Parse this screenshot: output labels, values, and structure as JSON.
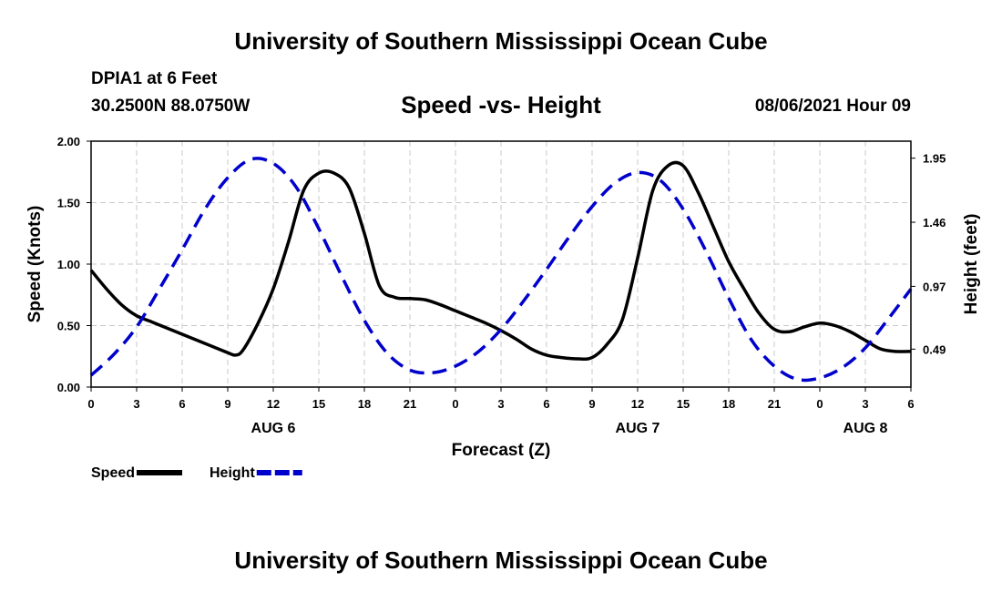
{
  "header": {
    "top_title": "University of Southern Mississippi Ocean Cube",
    "station": "DPIA1 at 6 Feet",
    "coordinates": "30.2500N  88.0750W",
    "subtitle": "Speed -vs- Height",
    "datetime": "08/06/2021 Hour 09",
    "bottom_title": "University of Southern Mississippi Ocean Cube"
  },
  "chart_data": {
    "type": "line",
    "title": "Speed -vs- Height",
    "xlabel": "Forecast (Z)",
    "ylabel": "Speed (Knots)",
    "y2label": "Height (feet)",
    "xlim": [
      0,
      54
    ],
    "ylim": [
      0,
      2.0
    ],
    "y2lim": [
      0.2,
      2.08
    ],
    "grid": true,
    "x_ticks": [
      0,
      3,
      6,
      9,
      12,
      15,
      18,
      21,
      24,
      27,
      30,
      33,
      36,
      39,
      42,
      45,
      48,
      51,
      54
    ],
    "x_tick_labels": [
      "0",
      "3",
      "6",
      "9",
      "12",
      "15",
      "18",
      "21",
      "0",
      "3",
      "6",
      "9",
      "12",
      "15",
      "18",
      "21",
      "0",
      "3",
      "6"
    ],
    "day_labels": [
      {
        "x": 12,
        "label": "AUG 6"
      },
      {
        "x": 36,
        "label": "AUG 7"
      },
      {
        "x": 51,
        "label": "AUG 8"
      }
    ],
    "y_ticks": [
      0.0,
      0.5,
      1.0,
      1.5,
      2.0
    ],
    "y_tick_labels": [
      "0.00",
      "0.50",
      "1.00",
      "1.50",
      "2.00"
    ],
    "y2_ticks": [
      0.49,
      0.97,
      1.46,
      1.95
    ],
    "y2_tick_labels": [
      "0.49",
      "0.97",
      "1.46",
      "1.95"
    ],
    "series": [
      {
        "name": "Speed",
        "axis": "left",
        "color": "#000000",
        "style": "solid",
        "x": [
          0,
          1,
          2,
          3,
          4,
          5,
          6,
          7,
          8,
          9,
          9.5,
          10,
          11,
          12,
          13,
          14,
          15,
          16,
          17,
          18,
          19,
          20,
          21,
          22,
          23,
          24,
          25,
          26,
          27,
          28,
          29,
          30,
          31,
          32,
          33,
          34,
          35,
          36,
          37,
          38,
          39,
          40,
          41,
          42,
          43,
          44,
          45,
          46,
          47,
          48,
          49,
          50,
          51,
          52,
          53,
          54
        ],
        "values": [
          0.95,
          0.8,
          0.67,
          0.58,
          0.53,
          0.48,
          0.43,
          0.38,
          0.33,
          0.28,
          0.26,
          0.3,
          0.52,
          0.8,
          1.18,
          1.6,
          1.74,
          1.74,
          1.62,
          1.25,
          0.82,
          0.73,
          0.72,
          0.71,
          0.67,
          0.62,
          0.57,
          0.52,
          0.46,
          0.39,
          0.31,
          0.26,
          0.24,
          0.23,
          0.24,
          0.35,
          0.55,
          1.05,
          1.6,
          1.8,
          1.8,
          1.58,
          1.3,
          1.02,
          0.8,
          0.6,
          0.47,
          0.45,
          0.49,
          0.52,
          0.5,
          0.45,
          0.38,
          0.31,
          0.29,
          0.29
        ]
      },
      {
        "name": "Height",
        "axis": "right",
        "color": "#0000cc",
        "style": "dashed",
        "x": [
          0,
          1.5,
          3,
          4.5,
          6,
          7.5,
          9,
          10.5,
          12,
          13.5,
          15,
          16.5,
          18,
          19.5,
          21,
          22.5,
          24,
          25.5,
          27,
          28.5,
          30,
          31.5,
          33,
          34.5,
          36,
          37.5,
          39,
          40.5,
          42,
          43.5,
          45,
          46.5,
          48,
          49.5,
          51,
          52.5,
          54
        ],
        "values": [
          0.29,
          0.45,
          0.66,
          0.95,
          1.25,
          1.56,
          1.8,
          1.94,
          1.91,
          1.73,
          1.41,
          1.05,
          0.71,
          0.46,
          0.33,
          0.31,
          0.36,
          0.47,
          0.64,
          0.86,
          1.1,
          1.35,
          1.58,
          1.76,
          1.84,
          1.78,
          1.56,
          1.24,
          0.88,
          0.56,
          0.36,
          0.26,
          0.27,
          0.35,
          0.5,
          0.72,
          0.95
        ]
      }
    ],
    "legend": [
      {
        "label": "Speed",
        "color": "#000000",
        "style": "solid"
      },
      {
        "label": "Height",
        "color": "#0000cc",
        "style": "dashed"
      }
    ]
  }
}
